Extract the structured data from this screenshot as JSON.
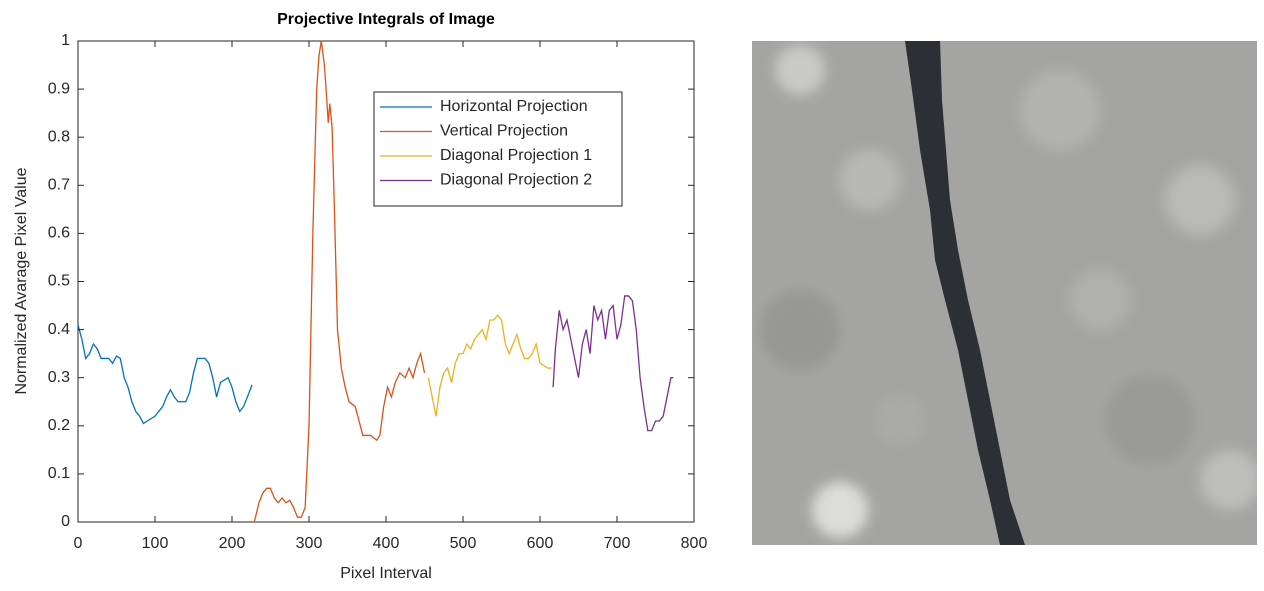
{
  "chart_data": {
    "type": "line",
    "title": "Projective Integrals of Image",
    "x_label": "Pixel Interval",
    "y_label": "Normalized Avarage Pixel Value",
    "xlim": [
      0,
      800
    ],
    "ylim": [
      0,
      1
    ],
    "xticks": [
      0,
      100,
      200,
      300,
      400,
      500,
      600,
      700,
      800
    ],
    "yticks": [
      0,
      0.1,
      0.2,
      0.3,
      0.4,
      0.5,
      0.6,
      0.7,
      0.8,
      0.9,
      1
    ],
    "grid": false,
    "series": [
      {
        "name": "Horizontal Projection",
        "color": "#0072BD",
        "x": [
          0,
          5,
          10,
          15,
          20,
          25,
          30,
          40,
          45,
          50,
          55,
          60,
          65,
          70,
          75,
          80,
          85,
          90,
          100,
          110,
          115,
          120,
          125,
          130,
          140,
          145,
          150,
          155,
          165,
          170,
          175,
          180,
          185,
          195,
          200,
          205,
          210,
          215,
          220,
          226
        ],
        "values": [
          0.41,
          0.38,
          0.34,
          0.35,
          0.37,
          0.36,
          0.34,
          0.34,
          0.33,
          0.345,
          0.34,
          0.3,
          0.28,
          0.25,
          0.23,
          0.22,
          0.205,
          0.21,
          0.22,
          0.24,
          0.26,
          0.275,
          0.26,
          0.25,
          0.25,
          0.27,
          0.31,
          0.34,
          0.34,
          0.33,
          0.3,
          0.26,
          0.29,
          0.3,
          0.28,
          0.25,
          0.23,
          0.24,
          0.26,
          0.285
        ]
      },
      {
        "name": "Vertical Projection",
        "color": "#D95319",
        "x": [
          229,
          235,
          240,
          245,
          250,
          255,
          260,
          265,
          270,
          275,
          280,
          285,
          290,
          295,
          300,
          305,
          310,
          313,
          316,
          320,
          323,
          325,
          327,
          330,
          333,
          337,
          342,
          347,
          352,
          360,
          365,
          370,
          380,
          388,
          392,
          397,
          402,
          407,
          412,
          418,
          425,
          430,
          435,
          440,
          445,
          450
        ],
        "values": [
          0,
          0.04,
          0.06,
          0.07,
          0.07,
          0.05,
          0.04,
          0.05,
          0.04,
          0.045,
          0.03,
          0.01,
          0.01,
          0.03,
          0.2,
          0.6,
          0.9,
          0.97,
          1,
          0.95,
          0.88,
          0.83,
          0.87,
          0.82,
          0.65,
          0.4,
          0.32,
          0.28,
          0.25,
          0.24,
          0.21,
          0.18,
          0.18,
          0.17,
          0.18,
          0.24,
          0.28,
          0.26,
          0.29,
          0.31,
          0.3,
          0.32,
          0.3,
          0.33,
          0.35,
          0.31
        ]
      },
      {
        "name": "Diagonal Projection 1",
        "color": "#EDB120",
        "x": [
          455,
          460,
          465,
          470,
          475,
          480,
          485,
          490,
          495,
          500,
          505,
          510,
          515,
          520,
          525,
          530,
          535,
          540,
          545,
          550,
          555,
          560,
          565,
          570,
          575,
          580,
          585,
          590,
          595,
          600,
          610,
          615
        ],
        "values": [
          0.3,
          0.26,
          0.22,
          0.28,
          0.31,
          0.32,
          0.29,
          0.33,
          0.35,
          0.35,
          0.37,
          0.36,
          0.38,
          0.39,
          0.4,
          0.38,
          0.42,
          0.42,
          0.43,
          0.42,
          0.37,
          0.35,
          0.37,
          0.39,
          0.36,
          0.34,
          0.34,
          0.35,
          0.37,
          0.33,
          0.32,
          0.32
        ]
      },
      {
        "name": "Diagonal Projection 2",
        "color": "#7E2F8E",
        "x": [
          617,
          620,
          625,
          630,
          635,
          640,
          645,
          650,
          655,
          660,
          665,
          670,
          675,
          680,
          685,
          690,
          695,
          700,
          705,
          710,
          715,
          720,
          725,
          730,
          735,
          740,
          745,
          750,
          755,
          760,
          765,
          770,
          773
        ],
        "values": [
          0.28,
          0.36,
          0.44,
          0.4,
          0.42,
          0.38,
          0.34,
          0.3,
          0.37,
          0.4,
          0.35,
          0.45,
          0.42,
          0.44,
          0.38,
          0.44,
          0.45,
          0.38,
          0.41,
          0.47,
          0.47,
          0.46,
          0.4,
          0.3,
          0.24,
          0.19,
          0.19,
          0.21,
          0.21,
          0.22,
          0.26,
          0.3,
          0.3
        ]
      }
    ]
  }
}
